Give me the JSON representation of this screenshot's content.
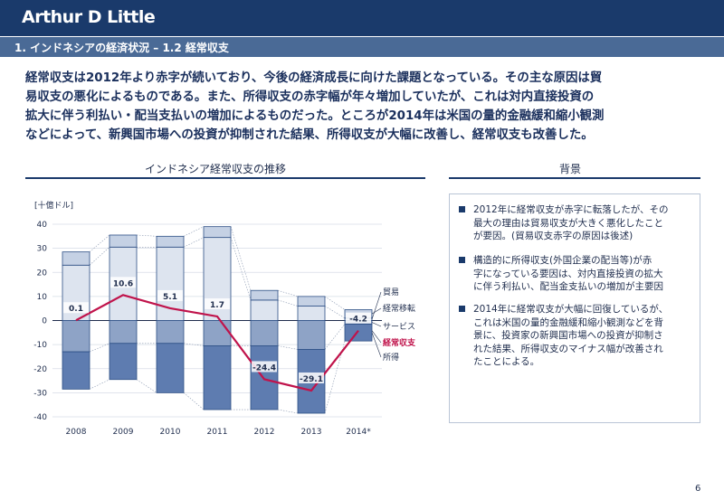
{
  "logo": "Arthur D Little",
  "section_title": "1. インドネシアの経済状況 – 1.2 経常収支",
  "headline": [
    "経常収支は2012年より赤字が続いており、今後の経済成長に向けた課題となっている。その主な原因は貿",
    "易収支の悪化によるものである。また、所得収支の赤字幅が年々増加していたが、これは対内直接投資の",
    "拡大に伴う利払い・配当支払いの増加によるものだった。ところが2014年は米国の量的金融緩和縮小観測",
    "などによって、新興国市場への投資が抑制された結果、所得収支が大幅に改善し、経常収支も改善した。"
  ],
  "chart_panel_title": "インドネシア経常収支の推移",
  "background_panel_title": "背景",
  "background_bullets": [
    [
      "2012年に経常収支が赤字に転落したが、その",
      "最大の理由は貿易収支が大きく悪化したこと",
      "が要因。(貿易収支赤字の原因は後述)"
    ],
    [
      "構造的に所得収支(外国企業の配当等)が赤",
      "字になっている要因は、対内直接投資の拡大",
      "に伴う利払い、配当金支払いの増加が主要因"
    ],
    [
      "2014年に経常収支が大幅に回復しているが、",
      "これは米国の量的金融緩和縮小観測などを背",
      "景に、投資家の新興国市場への投資が抑制さ",
      "れた結果、所得収支のマイナス幅が改善され",
      "たことによる。"
    ]
  ],
  "page_number": "6",
  "chart_data": {
    "type": "bar",
    "unit_label": "[十億ドル]",
    "categories": [
      "2008",
      "2009",
      "2010",
      "2011",
      "2012",
      "2013",
      "2014*"
    ],
    "ylim": [
      -40,
      40
    ],
    "yticks": [
      40,
      30,
      20,
      10,
      0,
      -10,
      -20,
      -30,
      -40
    ],
    "series": [
      {
        "name": "貿易",
        "values": [
          23.0,
          30.5,
          30.5,
          34.5,
          8.5,
          6.0,
          1.0
        ],
        "color": "#dde4ef"
      },
      {
        "name": "経常移転",
        "values": [
          5.5,
          5.0,
          4.5,
          4.5,
          4.0,
          4.0,
          3.5
        ],
        "color": "#c5d1e4"
      },
      {
        "name": "サービス",
        "values": [
          -13.0,
          -9.5,
          -9.5,
          -10.5,
          -10.5,
          -12.0,
          -1.5
        ],
        "color": "#8ea3c6"
      },
      {
        "name": "所得",
        "values": [
          -15.5,
          -15.0,
          -20.5,
          -26.5,
          -26.5,
          -26.5,
          -7.0
        ],
        "color": "#5e7cb0"
      }
    ],
    "line": {
      "name": "経常収支",
      "values": [
        0.1,
        10.6,
        5.1,
        1.7,
        -24.4,
        -29.1,
        -4.2
      ],
      "labels": [
        "0.1",
        "10.6",
        "5.1",
        "1.7",
        "-24.4",
        "-29.1",
        "-4.2"
      ],
      "color": "#c0134b"
    }
  }
}
